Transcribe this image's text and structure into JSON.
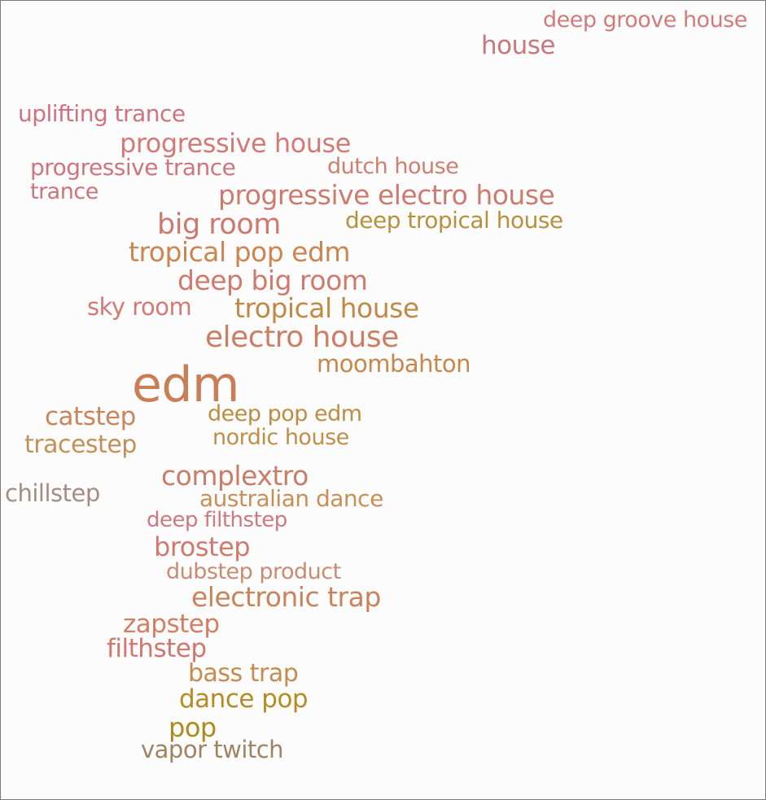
{
  "words": [
    {
      "text": "deep groove house",
      "color": "#cf7d7a"
    },
    {
      "text": "house",
      "color": "#c5797c"
    },
    {
      "text": "uplifting trance",
      "color": "#d2717e"
    },
    {
      "text": "progressive house",
      "color": "#d27a76"
    },
    {
      "text": "progressive trance",
      "color": "#d0747f"
    },
    {
      "text": "dutch house",
      "color": "#cf7f72"
    },
    {
      "text": "trance",
      "color": "#cf7379"
    },
    {
      "text": "progressive electro house",
      "color": "#cc7c6e"
    },
    {
      "text": "big room",
      "color": "#cf7870"
    },
    {
      "text": "deep tropical house",
      "color": "#b6923f"
    },
    {
      "text": "tropical pop edm",
      "color": "#cb8552"
    },
    {
      "text": "deep big room",
      "color": "#cf7a6c"
    },
    {
      "text": "sky room",
      "color": "#d27a76"
    },
    {
      "text": "tropical house",
      "color": "#bf8a45"
    },
    {
      "text": "electro house",
      "color": "#ca7f65"
    },
    {
      "text": "moombahton",
      "color": "#c7874c"
    },
    {
      "text": "edm",
      "color": "#c87f55"
    },
    {
      "text": "catstep",
      "color": "#c8865a"
    },
    {
      "text": "deep pop edm",
      "color": "#bd8c42"
    },
    {
      "text": "tracestep",
      "color": "#c39058"
    },
    {
      "text": "nordic house",
      "color": "#c18e4a"
    },
    {
      "text": "complextro",
      "color": "#c77d67"
    },
    {
      "text": "chillstep",
      "color": "#a48d83"
    },
    {
      "text": "australian dance",
      "color": "#c88f57"
    },
    {
      "text": "deep filthstep",
      "color": "#cc7a80"
    },
    {
      "text": "brostep",
      "color": "#cf7a6d"
    },
    {
      "text": "dubstep product",
      "color": "#c98c72"
    },
    {
      "text": "electronic trap",
      "color": "#c9835a"
    },
    {
      "text": "zapstep",
      "color": "#d47e63"
    },
    {
      "text": "filthstep",
      "color": "#d1776d"
    },
    {
      "text": "bass trap",
      "color": "#c48c4e"
    },
    {
      "text": "dance pop",
      "color": "#b58b25"
    },
    {
      "text": "pop",
      "color": "#ab8a1d"
    },
    {
      "text": "vapor twitch",
      "color": "#9f8462"
    }
  ]
}
